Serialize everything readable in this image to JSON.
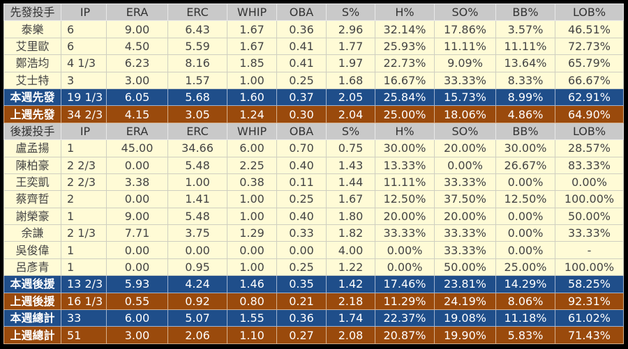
{
  "colors": {
    "header": "#c9c9c9",
    "player": "#fffbd6",
    "this_week": "#1f4e8a",
    "last_week": "#9a4a0c"
  },
  "rows": [
    {
      "type": "hdr",
      "cells": [
        "先發投手",
        "IP",
        "ERA",
        "ERC",
        "WHIP",
        "OBA",
        "S%",
        "H%",
        "SO%",
        "BB%",
        "LOB%"
      ]
    },
    {
      "type": "player",
      "cells": [
        "泰樂",
        "6",
        "9.00",
        "6.43",
        "1.67",
        "0.36",
        "2.96",
        "32.14%",
        "17.86%",
        "3.57%",
        "46.51%"
      ]
    },
    {
      "type": "player",
      "cells": [
        "艾里歐",
        "6",
        "4.50",
        "5.59",
        "1.67",
        "0.41",
        "1.77",
        "25.93%",
        "11.11%",
        "11.11%",
        "72.73%"
      ]
    },
    {
      "type": "player",
      "cells": [
        "鄭浩均",
        "4 1/3",
        "6.23",
        "8.16",
        "1.85",
        "0.41",
        "1.97",
        "22.73%",
        "9.09%",
        "13.64%",
        "65.79%"
      ]
    },
    {
      "type": "player",
      "cells": [
        "艾士特",
        "3",
        "3.00",
        "1.57",
        "1.00",
        "0.25",
        "1.68",
        "16.67%",
        "33.33%",
        "8.33%",
        "66.67%"
      ]
    },
    {
      "type": "cur",
      "cells": [
        "本週先發",
        "19 1/3",
        "6.05",
        "5.68",
        "1.60",
        "0.37",
        "2.05",
        "25.84%",
        "15.73%",
        "8.99%",
        "62.91%"
      ]
    },
    {
      "type": "prev",
      "cells": [
        "上週先發",
        "34 2/3",
        "4.15",
        "3.05",
        "1.24",
        "0.30",
        "2.04",
        "25.00%",
        "18.06%",
        "4.86%",
        "64.90%"
      ]
    },
    {
      "type": "hdr",
      "cells": [
        "後援投手",
        "IP",
        "ERA",
        "ERC",
        "WHIP",
        "OBA",
        "S%",
        "H%",
        "SO%",
        "BB%",
        "LOB%"
      ]
    },
    {
      "type": "player",
      "cells": [
        "盧孟揚",
        "1",
        "45.00",
        "34.66",
        "6.00",
        "0.70",
        "0.75",
        "30.00%",
        "20.00%",
        "30.00%",
        "28.57%"
      ]
    },
    {
      "type": "player",
      "cells": [
        "陳柏豪",
        "2 2/3",
        "0.00",
        "5.48",
        "2.25",
        "0.40",
        "1.43",
        "13.33%",
        "0.00%",
        "26.67%",
        "83.33%"
      ]
    },
    {
      "type": "player",
      "cells": [
        "王奕凱",
        "2 2/3",
        "3.38",
        "1.00",
        "0.38",
        "0.11",
        "1.44",
        "11.11%",
        "33.33%",
        "0.00%",
        "0.00%"
      ]
    },
    {
      "type": "player",
      "cells": [
        "蔡齊哲",
        "2",
        "0.00",
        "1.41",
        "1.00",
        "0.25",
        "1.67",
        "12.50%",
        "37.50%",
        "12.50%",
        "100.00%"
      ]
    },
    {
      "type": "player",
      "cells": [
        "謝榮豪",
        "1",
        "9.00",
        "5.48",
        "1.00",
        "0.40",
        "1.80",
        "20.00%",
        "20.00%",
        "0.00%",
        "50.00%"
      ]
    },
    {
      "type": "player",
      "cells": [
        "余謙",
        "2 1/3",
        "7.71",
        "3.75",
        "1.29",
        "0.33",
        "1.82",
        "33.33%",
        "33.33%",
        "0.00%",
        "33.33%"
      ]
    },
    {
      "type": "player",
      "cells": [
        "吳俊偉",
        "1",
        "0.00",
        "0.00",
        "0.00",
        "0.00",
        "4.00",
        "0.00%",
        "33.33%",
        "0.00%",
        "-"
      ]
    },
    {
      "type": "player",
      "cells": [
        "呂彥青",
        "1",
        "0.00",
        "0.95",
        "1.00",
        "0.25",
        "1.22",
        "0.00%",
        "50.00%",
        "25.00%",
        "100.00%"
      ]
    },
    {
      "type": "cur",
      "cells": [
        "本週後援",
        "13 2/3",
        "5.93",
        "4.24",
        "1.46",
        "0.35",
        "1.42",
        "17.46%",
        "23.81%",
        "14.29%",
        "58.25%"
      ]
    },
    {
      "type": "prev",
      "cells": [
        "上週後援",
        "16 1/3",
        "0.55",
        "0.92",
        "0.80",
        "0.21",
        "2.18",
        "11.29%",
        "24.19%",
        "8.06%",
        "92.31%"
      ]
    },
    {
      "type": "cur",
      "cells": [
        "本週總計",
        "33",
        "6.00",
        "5.07",
        "1.55",
        "0.36",
        "1.74",
        "22.37%",
        "19.08%",
        "11.18%",
        "61.02%"
      ]
    },
    {
      "type": "prev",
      "cells": [
        "上週總計",
        "51",
        "3.00",
        "2.06",
        "1.10",
        "0.27",
        "2.08",
        "20.87%",
        "19.90%",
        "5.83%",
        "71.43%"
      ]
    }
  ]
}
